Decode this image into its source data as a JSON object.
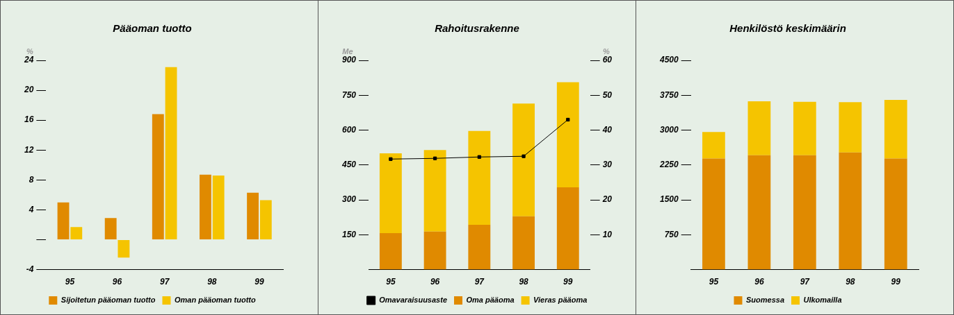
{
  "chart_data": [
    {
      "type": "bar",
      "title": "Pääoman tuotto",
      "ylabel": "%",
      "categories": [
        "95",
        "96",
        "97",
        "98",
        "99"
      ],
      "series": [
        {
          "name": "Sijoitetun pääoman tuotto",
          "color": "#e08a00",
          "values": [
            5.0,
            2.9,
            16.8,
            8.7,
            6.3
          ]
        },
        {
          "name": "Oman pääoman tuotto",
          "color": "#f5c400",
          "values": [
            1.7,
            -2.4,
            23.1,
            8.6,
            5.3
          ]
        }
      ],
      "ylim": [
        -4,
        24
      ],
      "yticks": [
        -4,
        {
          "value": 0,
          "label": null
        },
        4,
        8,
        12,
        16,
        20,
        24
      ],
      "grid": false,
      "legend": "bottom"
    },
    {
      "type": "bar",
      "title": "Rahoitusrakenne",
      "ylabel": "Me",
      "y2label": "%",
      "categories": [
        "95",
        "96",
        "97",
        "98",
        "99"
      ],
      "stacked": true,
      "series": [
        {
          "name": "Oma pääoma",
          "color": "#e08a00",
          "values": [
            157,
            164,
            193,
            229,
            354
          ]
        },
        {
          "name": "Vieras pääoma",
          "color": "#f5c400",
          "values": [
            343,
            350,
            403,
            485,
            452
          ]
        },
        {
          "name": "Omavaraisuusaste",
          "type": "line",
          "axis": "y2",
          "color": "#000000",
          "values": [
            31.7,
            31.9,
            32.3,
            32.5,
            43.0
          ]
        }
      ],
      "ylim": [
        0,
        900
      ],
      "yticks": [
        150,
        300,
        450,
        600,
        750,
        900
      ],
      "y2lim": [
        0,
        60
      ],
      "y2ticks": [
        10,
        20,
        30,
        40,
        50,
        60
      ],
      "marker": "square",
      "grid": false,
      "legend": "bottom"
    },
    {
      "type": "bar",
      "title": "Henkilöstö keskimäärin",
      "categories": [
        "95",
        "96",
        "97",
        "98",
        "99"
      ],
      "stacked": true,
      "series": [
        {
          "name": "Suomessa",
          "color": "#e08a00",
          "values": [
            2390,
            2460,
            2460,
            2520,
            2390
          ]
        },
        {
          "name": "Ulkomailla",
          "color": "#f5c400",
          "values": [
            570,
            1160,
            1150,
            1080,
            1260
          ]
        }
      ],
      "ylim": [
        0,
        4500
      ],
      "yticks": [
        750,
        1500,
        2250,
        3000,
        3750,
        4500
      ],
      "grid": false,
      "legend": "bottom"
    }
  ]
}
